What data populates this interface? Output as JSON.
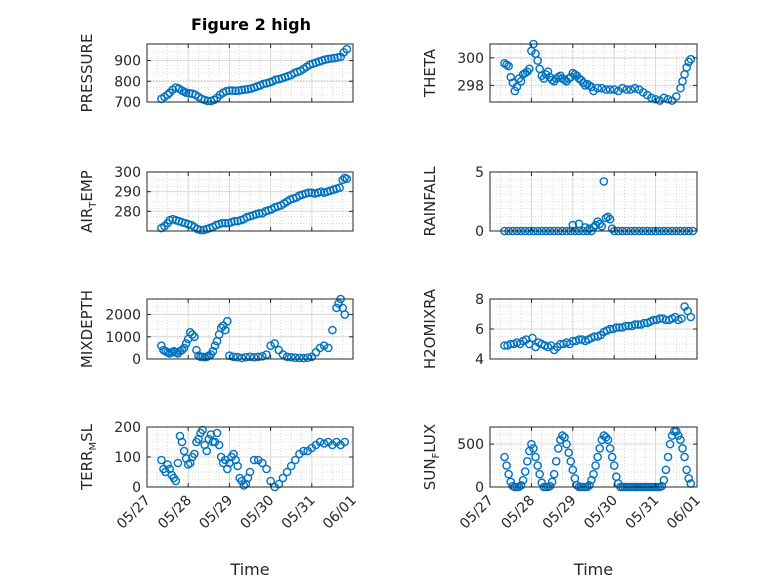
{
  "figure_title": "Figure 2 high",
  "colors": {
    "marker": "#0072BD",
    "axis": "#262626",
    "grid": "#d9d9d9",
    "minor_grid": "#bfbfbf"
  },
  "chart_data": [
    {
      "id": "pressure",
      "type": "scatter",
      "ylabel": "PRESSURE",
      "ylim": [
        700,
        980
      ],
      "yticks": [
        700,
        800,
        900
      ],
      "show_xticks": false,
      "grid": true,
      "minor_grid": true,
      "x": [
        0.5,
        0.7,
        0.9,
        1.0,
        1.2,
        1.4,
        1.6,
        1.8,
        1.9,
        2.0,
        2.2,
        2.4,
        2.6,
        2.8,
        3.0,
        3.2,
        3.4,
        3.6,
        3.8,
        4.0,
        4.2,
        4.4,
        4.6,
        4.8,
        5.0,
        5.2,
        5.4,
        5.6,
        5.8,
        6.0,
        6.2,
        6.4,
        6.6,
        6.8,
        7.0,
        7.2,
        7.4,
        7.6,
        7.8,
        8.0,
        8.2,
        8.4,
        8.6,
        8.8,
        9.0,
        9.2,
        9.4,
        9.6,
        9.8,
        10.0,
        10.2,
        10.4,
        10.6,
        10.8,
        11.0,
        11.2,
        11.4,
        11.6,
        11.8,
        12.0,
        12.2,
        12.4
      ],
      "y": [
        715,
        725,
        735,
        745,
        760,
        770,
        765,
        755,
        750,
        745,
        742,
        740,
        735,
        725,
        715,
        710,
        705,
        705,
        710,
        720,
        735,
        745,
        752,
        755,
        755,
        754,
        755,
        758,
        760,
        762,
        765,
        770,
        775,
        780,
        787,
        790,
        795,
        800,
        808,
        810,
        815,
        820,
        825,
        830,
        840,
        845,
        850,
        860,
        870,
        880,
        885,
        890,
        895,
        900,
        905,
        908,
        910,
        912,
        915,
        918,
        940,
        955
      ],
      "xfrac": [
        0.07,
        0.085,
        0.1,
        0.11,
        0.125,
        0.14,
        0.155,
        0.17,
        0.18,
        0.19,
        0.205,
        0.22,
        0.235,
        0.25,
        0.265,
        0.28,
        0.295,
        0.31,
        0.325,
        0.34,
        0.355,
        0.37,
        0.385,
        0.4,
        0.415,
        0.43,
        0.445,
        0.46,
        0.475,
        0.49,
        0.505,
        0.52,
        0.535,
        0.55,
        0.565,
        0.58,
        0.595,
        0.61,
        0.625,
        0.64,
        0.655,
        0.67,
        0.685,
        0.7,
        0.715,
        0.73,
        0.745,
        0.76,
        0.775,
        0.79,
        0.805,
        0.82,
        0.835,
        0.85,
        0.865,
        0.88,
        0.895,
        0.91,
        0.925,
        0.94,
        0.955,
        0.97
      ]
    },
    {
      "id": "theta",
      "type": "scatter",
      "ylabel": "THETA",
      "ylim": [
        296.8,
        301
      ],
      "yticks": [
        298,
        300
      ],
      "show_xticks": false,
      "grid": true,
      "minor_grid": true,
      "xfrac": [
        0.07,
        0.08,
        0.09,
        0.1,
        0.11,
        0.12,
        0.13,
        0.14,
        0.15,
        0.16,
        0.17,
        0.18,
        0.19,
        0.2,
        0.21,
        0.22,
        0.23,
        0.24,
        0.25,
        0.26,
        0.27,
        0.28,
        0.29,
        0.3,
        0.31,
        0.32,
        0.33,
        0.34,
        0.35,
        0.36,
        0.37,
        0.38,
        0.39,
        0.4,
        0.41,
        0.42,
        0.43,
        0.44,
        0.45,
        0.46,
        0.47,
        0.48,
        0.49,
        0.5,
        0.52,
        0.54,
        0.56,
        0.58,
        0.6,
        0.62,
        0.64,
        0.66,
        0.68,
        0.7,
        0.72,
        0.74,
        0.76,
        0.78,
        0.8,
        0.82,
        0.84,
        0.86,
        0.88,
        0.9,
        0.92,
        0.93,
        0.94,
        0.95,
        0.96,
        0.97
      ],
      "y": [
        299.6,
        299.5,
        299.4,
        298.6,
        298.2,
        297.6,
        297.9,
        298.5,
        298.3,
        298.8,
        298.9,
        299.0,
        299.2,
        300.5,
        301.0,
        300.3,
        299.8,
        299.2,
        298.7,
        298.5,
        298.8,
        299.0,
        298.6,
        298.4,
        298.3,
        298.5,
        298.6,
        298.7,
        298.5,
        298.4,
        298.3,
        298.5,
        298.6,
        298.9,
        298.8,
        298.7,
        298.5,
        298.4,
        298.2,
        298.0,
        298.1,
        298.0,
        297.9,
        297.6,
        297.8,
        297.8,
        297.7,
        297.7,
        297.7,
        297.6,
        297.8,
        297.7,
        297.7,
        297.8,
        297.7,
        297.5,
        297.3,
        297.1,
        297.0,
        296.9,
        297.1,
        297.0,
        296.9,
        297.2,
        297.8,
        298.3,
        298.8,
        299.3,
        299.7,
        299.9
      ]
    },
    {
      "id": "air_temp",
      "type": "scatter",
      "ylabel": "AIR_TEMP",
      "ylim": [
        270,
        300
      ],
      "yticks": [
        280,
        290,
        300
      ],
      "show_xticks": false,
      "grid": true,
      "minor_grid": true,
      "xfrac": [
        0.07,
        0.085,
        0.1,
        0.11,
        0.125,
        0.14,
        0.155,
        0.17,
        0.185,
        0.2,
        0.215,
        0.23,
        0.245,
        0.26,
        0.275,
        0.29,
        0.305,
        0.32,
        0.335,
        0.35,
        0.365,
        0.38,
        0.395,
        0.41,
        0.425,
        0.44,
        0.455,
        0.47,
        0.485,
        0.5,
        0.515,
        0.53,
        0.545,
        0.56,
        0.575,
        0.59,
        0.605,
        0.62,
        0.635,
        0.65,
        0.665,
        0.68,
        0.695,
        0.71,
        0.725,
        0.74,
        0.755,
        0.77,
        0.785,
        0.8,
        0.815,
        0.83,
        0.845,
        0.86,
        0.875,
        0.89,
        0.905,
        0.92,
        0.935,
        0.95,
        0.96,
        0.97
      ],
      "y": [
        271.5,
        272.5,
        274,
        275.5,
        276,
        275.5,
        275,
        274.5,
        274,
        273.5,
        273,
        272,
        271,
        270.5,
        270.5,
        271,
        271.5,
        272,
        273,
        273.5,
        274,
        274,
        274,
        274.5,
        275,
        275,
        275.5,
        276,
        277,
        277.5,
        278,
        278.5,
        279,
        279,
        280,
        280.5,
        281,
        282,
        282.5,
        283,
        284,
        285,
        286,
        286.5,
        287,
        288,
        288.5,
        289,
        289.5,
        289.5,
        289,
        289.5,
        290,
        289.5,
        290,
        290.5,
        291,
        291.5,
        292,
        296,
        297,
        296.5
      ]
    },
    {
      "id": "rainfall",
      "type": "scatter",
      "ylabel": "RAINFALL",
      "ylim": [
        0,
        5
      ],
      "yticks": [
        0,
        5
      ],
      "show_xticks": false,
      "grid": true,
      "minor_grid": true,
      "xfrac": [
        0.07,
        0.09,
        0.11,
        0.13,
        0.15,
        0.17,
        0.19,
        0.21,
        0.23,
        0.25,
        0.27,
        0.29,
        0.31,
        0.33,
        0.35,
        0.37,
        0.39,
        0.41,
        0.43,
        0.45,
        0.47,
        0.49,
        0.5,
        0.51,
        0.52,
        0.53,
        0.54,
        0.55,
        0.56,
        0.57,
        0.58,
        0.59,
        0.6,
        0.62,
        0.64,
        0.66,
        0.68,
        0.7,
        0.72,
        0.74,
        0.76,
        0.78,
        0.8,
        0.82,
        0.84,
        0.86,
        0.88,
        0.9,
        0.92,
        0.94,
        0.96,
        0.98,
        0.4,
        0.43,
        0.46,
        0.48
      ],
      "y": [
        0,
        0,
        0,
        0,
        0,
        0,
        0,
        0,
        0,
        0,
        0,
        0,
        0,
        0,
        0,
        0,
        0,
        0,
        0,
        0,
        0,
        0,
        0.3,
        0.5,
        0.8,
        0.6,
        0.4,
        4.2,
        1.1,
        1.2,
        1.0,
        0.2,
        0,
        0,
        0,
        0,
        0,
        0,
        0,
        0,
        0,
        0,
        0,
        0,
        0,
        0,
        0,
        0,
        0,
        0,
        0,
        0,
        0.5,
        0.6,
        0.3,
        0.2
      ]
    },
    {
      "id": "mixdepth",
      "type": "scatter",
      "ylabel": "MIXDEPTH",
      "ylim": [
        0,
        2700
      ],
      "yticks": [
        0,
        1000,
        2000
      ],
      "show_xticks": false,
      "grid": true,
      "minor_grid": true,
      "xfrac": [
        0.07,
        0.08,
        0.09,
        0.1,
        0.11,
        0.12,
        0.13,
        0.14,
        0.15,
        0.16,
        0.17,
        0.18,
        0.19,
        0.2,
        0.21,
        0.22,
        0.23,
        0.24,
        0.25,
        0.26,
        0.27,
        0.28,
        0.29,
        0.3,
        0.31,
        0.32,
        0.33,
        0.34,
        0.35,
        0.36,
        0.37,
        0.38,
        0.39,
        0.4,
        0.42,
        0.44,
        0.46,
        0.48,
        0.5,
        0.52,
        0.54,
        0.56,
        0.58,
        0.6,
        0.62,
        0.64,
        0.66,
        0.68,
        0.7,
        0.72,
        0.74,
        0.76,
        0.78,
        0.8,
        0.82,
        0.84,
        0.86,
        0.88,
        0.9,
        0.92,
        0.93,
        0.94,
        0.95,
        0.96
      ],
      "y": [
        600,
        400,
        350,
        300,
        250,
        300,
        350,
        300,
        250,
        350,
        400,
        500,
        700,
        900,
        1200,
        1100,
        1000,
        400,
        150,
        100,
        100,
        80,
        100,
        150,
        200,
        350,
        600,
        800,
        1100,
        1400,
        1500,
        1300,
        1700,
        150,
        100,
        80,
        50,
        80,
        100,
        80,
        100,
        120,
        200,
        600,
        700,
        400,
        200,
        100,
        80,
        60,
        50,
        40,
        60,
        100,
        300,
        500,
        600,
        500,
        1300,
        2300,
        2500,
        2700,
        2300,
        2000
      ]
    },
    {
      "id": "h2omixra",
      "type": "scatter",
      "ylabel": "H2OMIXRA",
      "ylim": [
        4,
        8
      ],
      "yticks": [
        4,
        6,
        8
      ],
      "show_xticks": false,
      "grid": true,
      "minor_grid": true,
      "xfrac": [
        0.07,
        0.085,
        0.1,
        0.115,
        0.13,
        0.145,
        0.16,
        0.175,
        0.19,
        0.205,
        0.22,
        0.235,
        0.25,
        0.265,
        0.28,
        0.295,
        0.31,
        0.325,
        0.34,
        0.355,
        0.37,
        0.385,
        0.4,
        0.415,
        0.43,
        0.445,
        0.46,
        0.475,
        0.49,
        0.505,
        0.52,
        0.535,
        0.55,
        0.565,
        0.58,
        0.595,
        0.61,
        0.625,
        0.64,
        0.655,
        0.67,
        0.685,
        0.7,
        0.715,
        0.73,
        0.745,
        0.76,
        0.775,
        0.79,
        0.805,
        0.82,
        0.835,
        0.85,
        0.865,
        0.88,
        0.895,
        0.91,
        0.925,
        0.94,
        0.955,
        0.97
      ],
      "y": [
        4.9,
        4.9,
        5.0,
        5.0,
        5.1,
        5.0,
        5.2,
        5.3,
        5.0,
        5.4,
        4.8,
        5.1,
        5.0,
        4.9,
        4.8,
        4.9,
        4.6,
        4.8,
        5.0,
        5.0,
        5.1,
        5.0,
        5.2,
        5.2,
        5.3,
        5.3,
        5.2,
        5.3,
        5.4,
        5.5,
        5.5,
        5.6,
        5.8,
        5.9,
        6.0,
        6.0,
        6.1,
        6.1,
        6.1,
        6.2,
        6.2,
        6.2,
        6.3,
        6.3,
        6.3,
        6.4,
        6.4,
        6.5,
        6.6,
        6.6,
        6.7,
        6.7,
        6.6,
        6.6,
        6.7,
        6.8,
        6.6,
        6.7,
        7.5,
        7.2,
        6.8
      ]
    },
    {
      "id": "terr_msl",
      "type": "scatter",
      "ylabel": "TERR_MSL",
      "ylim": [
        0,
        200
      ],
      "yticks": [
        0,
        100,
        200
      ],
      "show_xticks": true,
      "xlabel": "Time",
      "grid": true,
      "minor_grid": true,
      "xticklabels": [
        "05/27",
        "05/28",
        "05/29",
        "05/30",
        "05/31",
        "06/01"
      ],
      "xfrac": [
        0.07,
        0.08,
        0.09,
        0.1,
        0.11,
        0.12,
        0.13,
        0.14,
        0.15,
        0.16,
        0.17,
        0.18,
        0.19,
        0.2,
        0.21,
        0.22,
        0.23,
        0.24,
        0.25,
        0.26,
        0.27,
        0.28,
        0.29,
        0.3,
        0.31,
        0.32,
        0.33,
        0.34,
        0.35,
        0.36,
        0.37,
        0.38,
        0.39,
        0.4,
        0.41,
        0.42,
        0.43,
        0.44,
        0.45,
        0.46,
        0.47,
        0.48,
        0.49,
        0.5,
        0.52,
        0.54,
        0.56,
        0.58,
        0.6,
        0.62,
        0.64,
        0.66,
        0.68,
        0.7,
        0.72,
        0.74,
        0.76,
        0.78,
        0.8,
        0.82,
        0.84,
        0.86,
        0.88,
        0.9,
        0.92,
        0.94,
        0.96
      ],
      "y": [
        90,
        60,
        50,
        75,
        60,
        40,
        30,
        20,
        80,
        170,
        150,
        120,
        95,
        75,
        80,
        100,
        110,
        150,
        160,
        180,
        190,
        140,
        120,
        160,
        175,
        150,
        150,
        180,
        140,
        100,
        80,
        90,
        60,
        80,
        100,
        110,
        90,
        70,
        30,
        20,
        5,
        10,
        30,
        50,
        90,
        90,
        80,
        60,
        20,
        0,
        10,
        30,
        50,
        70,
        90,
        110,
        120,
        120,
        130,
        140,
        150,
        145,
        150,
        140,
        150,
        140,
        150
      ]
    },
    {
      "id": "sun_flux",
      "type": "scatter",
      "ylabel": "SUN_FLUX",
      "ylim": [
        0,
        700
      ],
      "yticks": [
        0,
        500
      ],
      "show_xticks": true,
      "xlabel": "Time",
      "grid": true,
      "minor_grid": true,
      "xticklabels": [
        "05/27",
        "05/28",
        "05/29",
        "05/30",
        "05/31",
        "06/01"
      ],
      "xfrac": [
        0.07,
        0.08,
        0.09,
        0.1,
        0.11,
        0.12,
        0.13,
        0.14,
        0.15,
        0.16,
        0.17,
        0.18,
        0.19,
        0.2,
        0.21,
        0.22,
        0.23,
        0.24,
        0.25,
        0.26,
        0.27,
        0.28,
        0.29,
        0.3,
        0.31,
        0.32,
        0.33,
        0.34,
        0.35,
        0.36,
        0.37,
        0.38,
        0.39,
        0.4,
        0.41,
        0.42,
        0.43,
        0.44,
        0.45,
        0.46,
        0.47,
        0.48,
        0.49,
        0.5,
        0.51,
        0.52,
        0.53,
        0.54,
        0.55,
        0.56,
        0.57,
        0.58,
        0.59,
        0.6,
        0.61,
        0.62,
        0.63,
        0.64,
        0.65,
        0.66,
        0.67,
        0.68,
        0.69,
        0.7,
        0.71,
        0.72,
        0.73,
        0.74,
        0.75,
        0.76,
        0.77,
        0.78,
        0.79,
        0.8,
        0.81,
        0.82,
        0.83,
        0.84,
        0.85,
        0.86,
        0.87,
        0.88,
        0.89,
        0.9,
        0.91,
        0.92,
        0.93,
        0.94,
        0.95,
        0.96,
        0.97
      ],
      "y": [
        350,
        250,
        150,
        60,
        10,
        0,
        0,
        0,
        20,
        80,
        180,
        300,
        420,
        500,
        450,
        350,
        250,
        150,
        50,
        0,
        0,
        0,
        10,
        60,
        150,
        300,
        450,
        550,
        600,
        580,
        500,
        400,
        300,
        200,
        100,
        20,
        0,
        0,
        0,
        0,
        0,
        20,
        80,
        150,
        250,
        350,
        450,
        550,
        600,
        580,
        550,
        450,
        350,
        250,
        120,
        40,
        0,
        0,
        0,
        0,
        0,
        0,
        0,
        0,
        0,
        0,
        0,
        0,
        0,
        0,
        0,
        0,
        0,
        0,
        0,
        0,
        10,
        80,
        200,
        350,
        500,
        600,
        650,
        650,
        600,
        550,
        450,
        350,
        200,
        100,
        40
      ]
    }
  ]
}
